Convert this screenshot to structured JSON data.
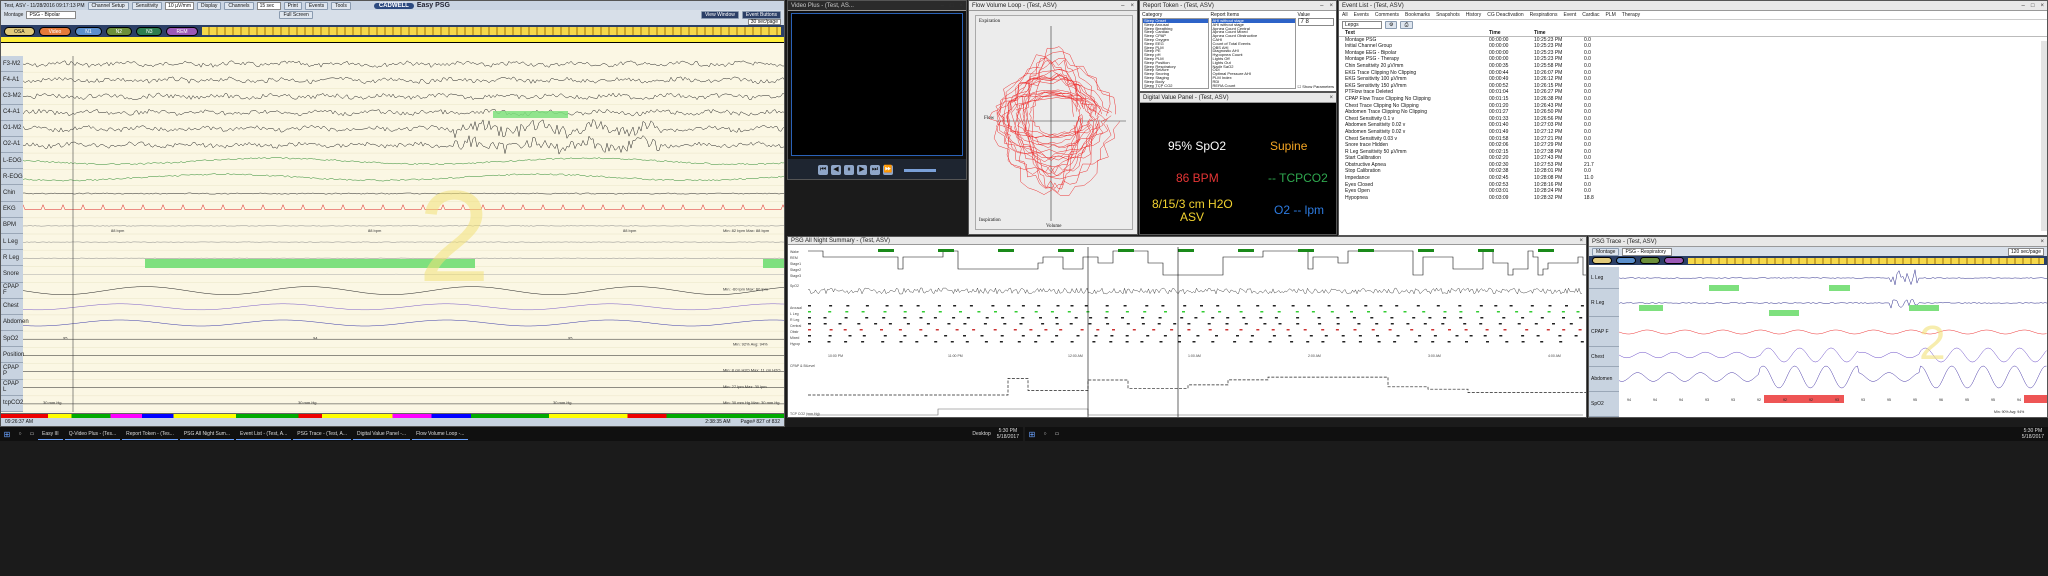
{
  "psg": {
    "title": "Test, ASV - 11/28/2016 09:17:13 PM",
    "logo": "CADWELL",
    "app_name": "Easy PSG",
    "toolbar1": [
      "Channel Setup",
      "Sensitivity",
      "10 µV/mm",
      "Display",
      "Channels",
      "15 sec",
      "Print",
      "Events",
      "Tools"
    ],
    "toolbar2": [
      "Montage",
      "PSG - Bipolar",
      "Full Screen",
      "View Window",
      "Event Buttons"
    ],
    "time_label": "30 sec/page",
    "tabs": [
      "OSA",
      "Video",
      "N1",
      "N2",
      "N3",
      "REM"
    ],
    "channels": [
      "F3-M2",
      "F4-A1",
      "C3-M2",
      "C4-A1",
      "O1-M2",
      "O2-A1",
      "L-EOG",
      "R-EOG",
      "Chin",
      "EKG",
      "BPM",
      "L Leg",
      "R Leg",
      "Snore",
      "CPAP F",
      "Chest",
      "Abdomen",
      "SpO2",
      "Position",
      "CPAP P",
      "CPAP L",
      "tcpCO2"
    ],
    "bpm_readouts": [
      "88 bpm",
      "88 bpm",
      "88 bpm"
    ],
    "bpm_range": "Min: 82 bpm Max: 88 bpm",
    "cpap_range": "Min: -60 lpm Max: 60 lpm",
    "spo2_values": [
      "95",
      "94",
      "95"
    ],
    "spo2_range": "Min: 92% Avg: 94%",
    "cpapp_range": "Min: 8 cm H2O Max: 11 cm H2O",
    "cpapl_range": "Min: 27 lpm Max: 30 lpm",
    "co2_values": [
      "30 mm Hg",
      "30 mm Hg",
      "30 mm Hg"
    ],
    "co2_range": "Min: 30 mm Hg Max: 30 mm Hg",
    "stage_number": "2",
    "footer_time": "09:26:37 AM",
    "footer_epoch": "Page# 827 of 832",
    "footer_clock": "2:38:35 AM"
  },
  "video": {
    "title": "Video Plus - (Test, AS..."
  },
  "flowvol": {
    "title": "Flow Volume Loop - (Test, ASV)",
    "top_label": "Expiration",
    "bottom_label": "Inspiration",
    "y_label": "Flow",
    "x_label": "Volume"
  },
  "report": {
    "title": "Report Token - (Test, ASV)",
    "category_label": "Category",
    "report_items_label": "Report Items",
    "value_label": "Value",
    "value": "7 8",
    "categories": [
      "Sleep Onset",
      "Sleep Arousal",
      "Sleep Breathing",
      "Sleep Cardiac",
      "Sleep CPAP",
      "Sleep Oxygen",
      "Sleep EEG",
      "Sleep PLM",
      "Sleep PE",
      "Sleep pH",
      "Sleep PLM",
      "Sleep Position",
      "Sleep Respiratory",
      "Sleep Seizure",
      "Sleep Snoring",
      "Sleep Staging",
      "Sleep Body",
      "Sleep TCP CO2",
      "Split Night"
    ],
    "items": [
      "AHI without stage",
      "AHI without stage",
      "Apnea Count Central",
      "Apnea Count Mixed",
      "Apnea Count Obstructive",
      "CAHI",
      "Count of Total Events",
      "OBS AHI",
      "Diagnostic AHI",
      "Hypopnea Count",
      "Lights Off",
      "Lights Out",
      "Nadir SaO2",
      "ODI",
      "Optimal Pressure AHI",
      "PLM Index",
      "RDI",
      "RERA Count"
    ],
    "show_params": "Show Parameters"
  },
  "digital": {
    "title": "Digital Value Panel - (Test, ASV)",
    "spo2": "95% SpO2",
    "position": "Supine",
    "bpm": "86 BPM",
    "tcpco2": "-- TCPCO2",
    "pressure": "8/15/3 cm H2O",
    "mode": "ASV",
    "o2": "O2 -- lpm"
  },
  "events": {
    "title": "Event List - (Test, ASV)",
    "tabs": [
      "All",
      "Events",
      "Comments",
      "Bookmarks",
      "Snapshots",
      "History",
      "CG Deactivation",
      "Respirations",
      "Event",
      "Cardiac",
      "PLM",
      "Therapy"
    ],
    "filter": "Lepgs",
    "headers": [
      "Text",
      "Time",
      "Time",
      ""
    ],
    "rows": [
      [
        "Montage PSG",
        "00:00:00",
        "10:25:23 PM",
        "0.0"
      ],
      [
        "Initial Channel Group",
        "00:00:00",
        "10:25:23 PM",
        "0.0"
      ],
      [
        "Montage EEG - Bipolar",
        "00:00:00",
        "10:25:23 PM",
        "0.0"
      ],
      [
        "Montage PSG - Therapy",
        "00:00:00",
        "10:25:23 PM",
        "0.0"
      ],
      [
        "Chin Sensitivity 20 µV/mm",
        "00:00:35",
        "10:25:58 PM",
        "0.0"
      ],
      [
        "EKG Trace Clipping No Clipping",
        "00:00:44",
        "10:26:07 PM",
        "0.0"
      ],
      [
        "EKG Sensitivity 100 µV/mm",
        "00:00:49",
        "10:26:12 PM",
        "0.0"
      ],
      [
        "EKG Sensitivity 150 µV/mm",
        "00:00:52",
        "10:26:15 PM",
        "0.0"
      ],
      [
        "PTFlow trace Deleted",
        "00:01:04",
        "10:26:27 PM",
        "0.0"
      ],
      [
        "CPAP Flow Trace Clipping No Clipping",
        "00:01:15",
        "10:26:38 PM",
        "0.0"
      ],
      [
        "Chest Trace Clipping No Clipping",
        "00:01:20",
        "10:26:43 PM",
        "0.0"
      ],
      [
        "Abdomen Trace Clipping No Clipping",
        "00:01:27",
        "10:26:50 PM",
        "0.0"
      ],
      [
        "Chest Sensitivity 0.1 v",
        "00:01:33",
        "10:26:56 PM",
        "0.0"
      ],
      [
        "Abdomen Sensitivity 0.02 v",
        "00:01:40",
        "10:27:03 PM",
        "0.0"
      ],
      [
        "Abdomen Sensitivity 0.02 v",
        "00:01:49",
        "10:27:12 PM",
        "0.0"
      ],
      [
        "Chest Sensitivity 0.03 v",
        "00:01:58",
        "10:27:21 PM",
        "0.0"
      ],
      [
        "Snore trace Hidden",
        "00:02:06",
        "10:27:29 PM",
        "0.0"
      ],
      [
        "R Leg Sensitivity 50 µV/mm",
        "00:02:15",
        "10:27:38 PM",
        "0.0"
      ],
      [
        "Start Calibration",
        "00:02:20",
        "10:27:43 PM",
        "0.0"
      ],
      [
        "Obstructive Apnea",
        "00:02:30",
        "10:27:53 PM",
        "21.7"
      ],
      [
        "Stop Calibration",
        "00:02:38",
        "10:28:01 PM",
        "0.0"
      ],
      [
        "Impedance",
        "00:02:45",
        "10:28:08 PM",
        "11.0"
      ],
      [
        "Eyes Closed",
        "00:02:53",
        "10:28:16 PM",
        "0.0"
      ],
      [
        "Eyes Open",
        "00:03:01",
        "10:28:24 PM",
        "0.0"
      ],
      [
        "Hypopnea",
        "00:03:09",
        "10:28:32 PM",
        "18.8"
      ]
    ]
  },
  "summary": {
    "title": "PSG All Night Summary - (Test, ASV)",
    "labels": [
      "Wake",
      "REM",
      "Stage1",
      "Stage2",
      "Stage3",
      "SpO2",
      "Arousal",
      "L Leg",
      "R Leg",
      "Central",
      "Obstr",
      "Mixed",
      "Hypop",
      "CPAP & BiLevel",
      "TCP CO2 (mm Hg)"
    ],
    "times": [
      "10:00 PM",
      "11:00 PM",
      "12:00 AM",
      "1:00 AM",
      "2:00 AM",
      "3:00 AM",
      "4:00 AM"
    ]
  },
  "trace2": {
    "title": "PSG Trace - (Test, ASV)",
    "montage": "PSG - Respiratory",
    "channels": [
      "L Leg",
      "R Leg",
      "CPAP F",
      "Chest",
      "Abdomen",
      "SpO2"
    ],
    "spo2_values": [
      "94",
      "94",
      "94",
      "93",
      "93",
      "92",
      "92",
      "92",
      "93",
      "93",
      "95",
      "95",
      "96",
      "95",
      "95",
      "94"
    ],
    "spo2_range": "Min: 90% Avg: 94%",
    "stage_number": "2",
    "time_label": "120 sec/page"
  },
  "taskbar": {
    "items": [
      "Easy III",
      "Q-Video Plus - (Tes...",
      "Report Token - (Tes...",
      "PSG All Night Sum...",
      "Event List - (Test, A...",
      "PSG Trace - (Test, A...",
      "Digital Value Panel -...",
      "Flow Volume Loop -..."
    ],
    "desktop": "Desktop",
    "clock_time": "5:30 PM",
    "clock_date": "5/18/2017"
  }
}
